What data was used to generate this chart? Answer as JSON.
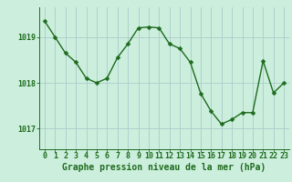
{
  "x": [
    0,
    1,
    2,
    3,
    4,
    5,
    6,
    7,
    8,
    9,
    10,
    11,
    12,
    13,
    14,
    15,
    16,
    17,
    18,
    19,
    20,
    21,
    22,
    23
  ],
  "y": [
    1019.35,
    1019.0,
    1018.65,
    1018.45,
    1018.1,
    1018.0,
    1018.1,
    1018.55,
    1018.85,
    1019.2,
    1019.22,
    1019.2,
    1018.85,
    1018.75,
    1018.45,
    1017.77,
    1017.38,
    1017.1,
    1017.2,
    1017.35,
    1017.35,
    1018.48,
    1017.78,
    1018.0
  ],
  "line_color": "#1e6b1e",
  "marker_color": "#1e6b1e",
  "bg_color": "#cceedd",
  "grid_color": "#aacccc",
  "xlabel": "Graphe pression niveau de la mer (hPa)",
  "ylim": [
    1016.55,
    1019.65
  ],
  "yticks": [
    1017,
    1018,
    1019
  ],
  "xlim": [
    -0.5,
    23.5
  ],
  "xticks": [
    0,
    1,
    2,
    3,
    4,
    5,
    6,
    7,
    8,
    9,
    10,
    11,
    12,
    13,
    14,
    15,
    16,
    17,
    18,
    19,
    20,
    21,
    22,
    23
  ],
  "xlabel_fontsize": 7.0,
  "tick_fontsize": 6.0,
  "line_width": 1.0,
  "marker_size": 2.5
}
